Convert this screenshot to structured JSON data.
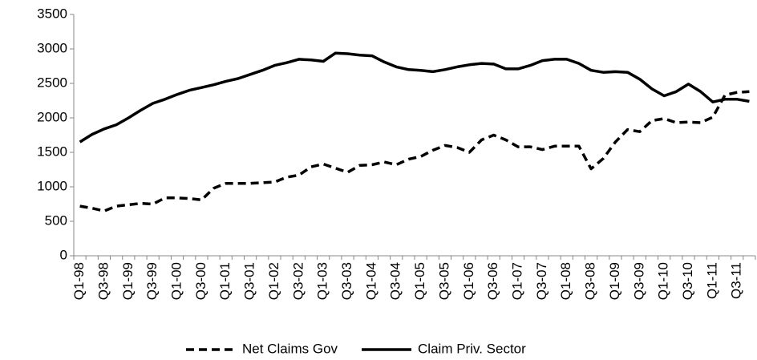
{
  "chart_data": {
    "type": "line",
    "categories": [
      "Q1-98",
      null,
      "Q3-98",
      null,
      "Q1-99",
      null,
      "Q3-99",
      null,
      "Q1-00",
      null,
      "Q3-00",
      null,
      "Q1-01",
      null,
      "Q3-01",
      null,
      "Q1-02",
      null,
      "Q3-02",
      null,
      "Q1-03",
      null,
      "Q3-03",
      null,
      "Q1-04",
      null,
      "Q3-04",
      null,
      "Q1-05",
      null,
      "Q3-05",
      null,
      "Q1-06",
      null,
      "Q3-06",
      null,
      "Q1-07",
      null,
      "Q3-07",
      null,
      "Q1-08",
      null,
      "Q3-08",
      null,
      "Q1-09",
      null,
      "Q3-09",
      null,
      "Q1-10",
      null,
      "Q3-10",
      null,
      "Q1-11",
      null,
      "Q3-11",
      null
    ],
    "series": [
      {
        "name": "Net Claims Gov",
        "color": "#000000",
        "dash": true,
        "values": [
          720,
          690,
          650,
          720,
          740,
          760,
          750,
          840,
          840,
          830,
          810,
          980,
          1050,
          1050,
          1050,
          1060,
          1070,
          1140,
          1170,
          1290,
          1330,
          1270,
          1210,
          1310,
          1320,
          1360,
          1320,
          1400,
          1440,
          1530,
          1600,
          1570,
          1500,
          1680,
          1750,
          1680,
          1580,
          1580,
          1540,
          1590,
          1590,
          1590,
          1260,
          1410,
          1650,
          1830,
          1800,
          1960,
          1990,
          1930,
          1940,
          1930,
          2010,
          2330,
          2370,
          2380
        ]
      },
      {
        "name": "Claim Priv. Sector",
        "color": "#000000",
        "dash": false,
        "values": [
          1650,
          1760,
          1840,
          1900,
          2000,
          2110,
          2210,
          2270,
          2340,
          2400,
          2440,
          2480,
          2530,
          2570,
          2630,
          2690,
          2760,
          2800,
          2850,
          2840,
          2820,
          2940,
          2930,
          2910,
          2900,
          2810,
          2740,
          2700,
          2690,
          2670,
          2700,
          2740,
          2770,
          2790,
          2780,
          2710,
          2710,
          2760,
          2830,
          2850,
          2850,
          2790,
          2690,
          2660,
          2670,
          2660,
          2560,
          2420,
          2320,
          2380,
          2490,
          2380,
          2230,
          2270,
          2270,
          2240
        ]
      }
    ],
    "ylim": [
      0,
      3500
    ],
    "yticks": [
      0,
      500,
      1000,
      1500,
      2000,
      2500,
      3000,
      3500
    ],
    "grid": false,
    "legend": "bottom"
  }
}
